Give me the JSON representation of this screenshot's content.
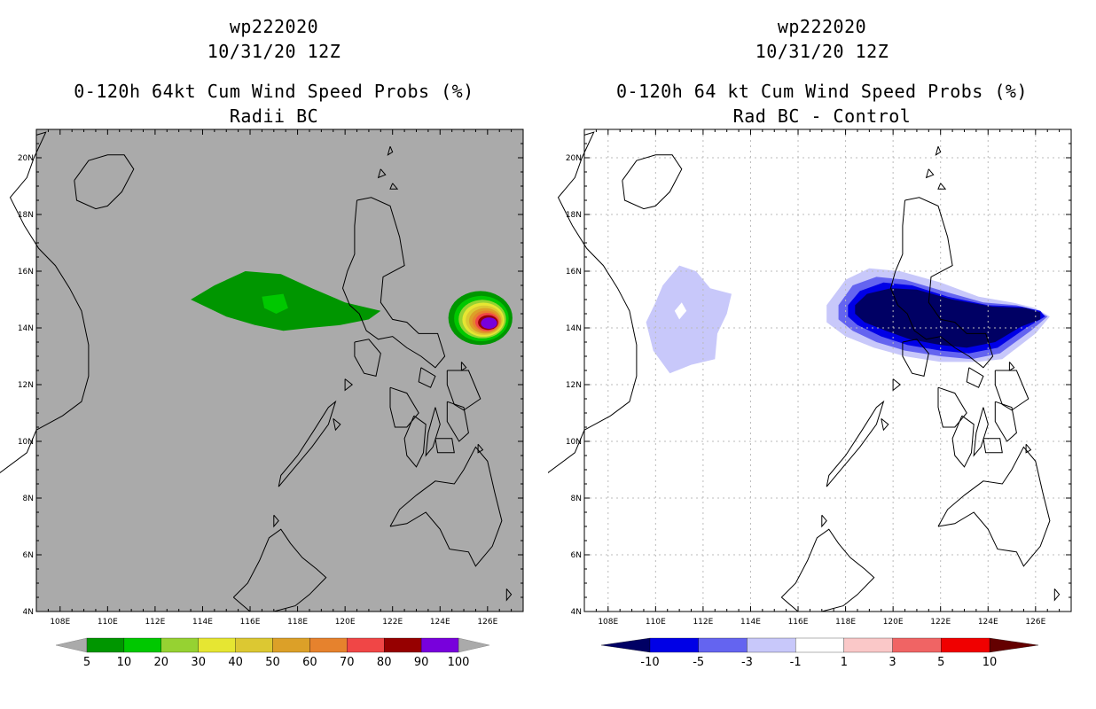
{
  "left": {
    "storm_id": "wp222020",
    "datetime": "10/31/20 12Z",
    "product": "0-120h 64kt Cum Wind Speed Probs (%)",
    "subtitle": "Radii BC",
    "background_color": "#aaaaaa",
    "colorbar": {
      "labels": [
        "5",
        "10",
        "20",
        "30",
        "40",
        "50",
        "60",
        "70",
        "80",
        "90",
        "100"
      ],
      "colors": [
        "#009600",
        "#00c800",
        "#96d232",
        "#e6e632",
        "#dcc832",
        "#dca028",
        "#e6822d",
        "#f04646",
        "#960000",
        "#7800dc"
      ],
      "end_colors": [
        "#aaaaaa",
        "#aaaaaa"
      ]
    }
  },
  "right": {
    "storm_id": "wp222020",
    "datetime": "10/31/20 12Z",
    "product": "0-120h 64 kt Cum Wind Speed Probs (%)",
    "subtitle": "Rad BC - Control",
    "background_color": "#ffffff",
    "colorbar": {
      "labels": [
        "-10",
        "-5",
        "-3",
        "-1",
        "1",
        "3",
        "5",
        "10"
      ],
      "colors": [
        "#0000e6",
        "#6464f0",
        "#c8c8fa",
        "#ffffff",
        "#fac8c8",
        "#f06464",
        "#f00000"
      ],
      "end_colors": [
        "#000064",
        "#640000"
      ]
    }
  },
  "axes": {
    "lon_ticks": [
      "108E",
      "110E",
      "112E",
      "114E",
      "116E",
      "118E",
      "120E",
      "122E",
      "124E",
      "126E"
    ],
    "lat_ticks": [
      "4N",
      "6N",
      "8N",
      "10N",
      "12N",
      "14N",
      "16N",
      "18N",
      "20N"
    ],
    "lon_range": [
      107,
      127.5
    ],
    "lat_range": [
      4,
      21
    ]
  },
  "colors": {
    "land_outline": "#000000",
    "grid": "#bbbbbb",
    "left_contours": [
      "#009600",
      "#00c800",
      "#96d232",
      "#e6e632",
      "#dcc832",
      "#dca028",
      "#e6822d",
      "#f04646",
      "#960000",
      "#7800dc"
    ],
    "right_contours": [
      "#c8c8fa",
      "#6464f0",
      "#0000e6",
      "#000064"
    ]
  }
}
